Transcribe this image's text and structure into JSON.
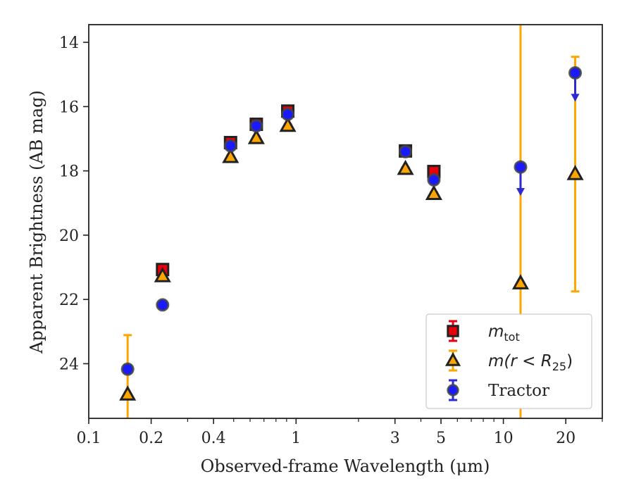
{
  "chart_data": {
    "type": "scatter",
    "title": "",
    "xlabel": "Observed-frame Wavelength (μm)",
    "ylabel": "Apparent Brightness (AB mag)",
    "xscale": "log",
    "yaxis_inverted": true,
    "xlim": [
      0.1,
      30
    ],
    "ylim": [
      25.7,
      13.45
    ],
    "xticks": [
      {
        "value": 0.1,
        "label": "0.1"
      },
      {
        "value": 0.2,
        "label": "0.2"
      },
      {
        "value": 0.4,
        "label": "0.4"
      },
      {
        "value": 1,
        "label": "1"
      },
      {
        "value": 3,
        "label": "3"
      },
      {
        "value": 5,
        "label": "5"
      },
      {
        "value": 10,
        "label": "10"
      },
      {
        "value": 20,
        "label": "20"
      }
    ],
    "yticks": [
      {
        "value": 14,
        "label": "14"
      },
      {
        "value": 16,
        "label": "16"
      },
      {
        "value": 18,
        "label": "18"
      },
      {
        "value": 20,
        "label": "20"
      },
      {
        "value": 22,
        "label": "22"
      },
      {
        "value": 24,
        "label": "24"
      }
    ],
    "grid": false,
    "legend_position": "lower-right",
    "legend": [
      {
        "series": "m_tot",
        "main": "m",
        "sub": "tot",
        "after": ""
      },
      {
        "series": "m_r25",
        "main": "m",
        "sub": "",
        "after": "(r < R",
        "sub2": "25",
        "close": ")"
      },
      {
        "series": "tractor",
        "text": "Tractor"
      }
    ],
    "series": [
      {
        "key": "m_tot",
        "marker": "square",
        "color": "#e8000b",
        "edge_color": "#222222",
        "errbar_color": "#e8000b",
        "points": [
          {
            "x": 0.227,
            "y": 21.07,
            "err": 0.08
          },
          {
            "x": 0.483,
            "y": 17.12,
            "err": 0.05
          },
          {
            "x": 0.643,
            "y": 16.55,
            "err": 0.05
          },
          {
            "x": 0.912,
            "y": 16.14,
            "err": 0.07
          },
          {
            "x": 3.37,
            "y": 17.38,
            "err": 0.05
          },
          {
            "x": 4.62,
            "y": 18.02,
            "err": 0.08
          }
        ]
      },
      {
        "key": "m_r25",
        "marker": "triangle",
        "color": "#ffa500",
        "edge_color": "#222222",
        "errbar_color": "#ffa500",
        "points": [
          {
            "x": 0.154,
            "y": 24.96,
            "err": 1.85
          },
          {
            "x": 0.227,
            "y": 21.28,
            "err": 0.05
          },
          {
            "x": 0.483,
            "y": 17.57,
            "err": 0.05
          },
          {
            "x": 0.643,
            "y": 16.98,
            "err": 0.05
          },
          {
            "x": 0.912,
            "y": 16.6,
            "err": 0.05
          },
          {
            "x": 3.37,
            "y": 17.94,
            "err": 0.05
          },
          {
            "x": 4.62,
            "y": 18.72,
            "err": 0.05
          },
          {
            "x": 12.1,
            "y": 21.5,
            "err": 8.5
          },
          {
            "x": 22.2,
            "y": 18.1,
            "err": 3.65
          }
        ]
      },
      {
        "key": "tractor",
        "marker": "circle",
        "color": "#1a1aff",
        "edge_color": "#444444",
        "errbar_color": "#2b2bd6",
        "points": [
          {
            "x": 0.154,
            "y": 24.17,
            "err": 0.12
          },
          {
            "x": 0.227,
            "y": 22.17,
            "err": 0.05
          },
          {
            "x": 0.483,
            "y": 17.22,
            "err": 0.05
          },
          {
            "x": 0.643,
            "y": 16.6,
            "err": 0.05
          },
          {
            "x": 0.912,
            "y": 16.24,
            "err": 0.05
          },
          {
            "x": 3.37,
            "y": 17.4,
            "err": 0.05
          },
          {
            "x": 4.62,
            "y": 18.28,
            "err": 0.1
          },
          {
            "x": 12.1,
            "y": 17.88,
            "upper_limit": true,
            "arrow": 0.85
          },
          {
            "x": 22.2,
            "y": 14.95,
            "upper_limit": true,
            "arrow": 0.85
          }
        ]
      }
    ]
  }
}
